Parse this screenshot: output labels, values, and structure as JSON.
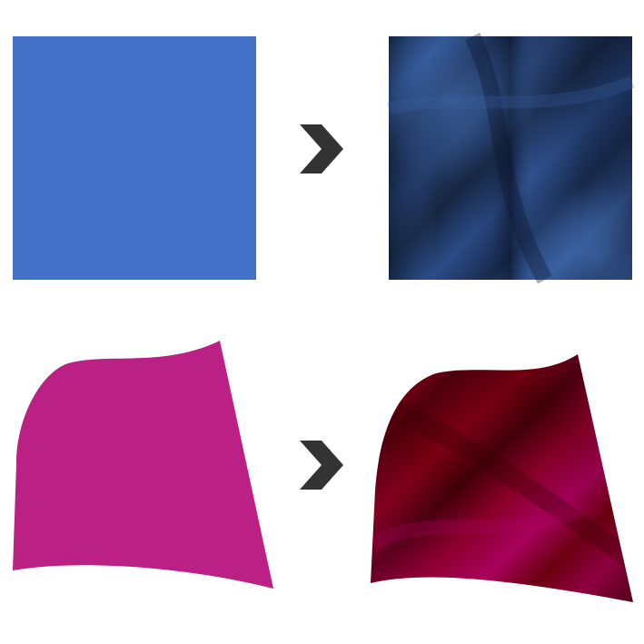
{
  "examples": [
    {
      "name": "flat-square-to-fabric-square",
      "before": {
        "shape": "square",
        "style": "flat fill",
        "color": "#4472C8"
      },
      "after": {
        "shape": "square",
        "style": "fabric folds",
        "base_color": "#1B2C4E",
        "highlight_color": "#3A62A6",
        "shadow_color": "#0E1A33"
      }
    },
    {
      "name": "flat-cloth-to-fabric-cloth",
      "before": {
        "shape": "curved cloth",
        "style": "flat fill",
        "color": "#BB2084"
      },
      "after": {
        "shape": "curved cloth",
        "style": "fabric folds",
        "base_color": "#7A0012",
        "highlight_color": "#A8005C",
        "shadow_color": "#3E0006"
      }
    }
  ],
  "arrow": {
    "icon": "chevron-right-icon",
    "color": "#333333"
  }
}
